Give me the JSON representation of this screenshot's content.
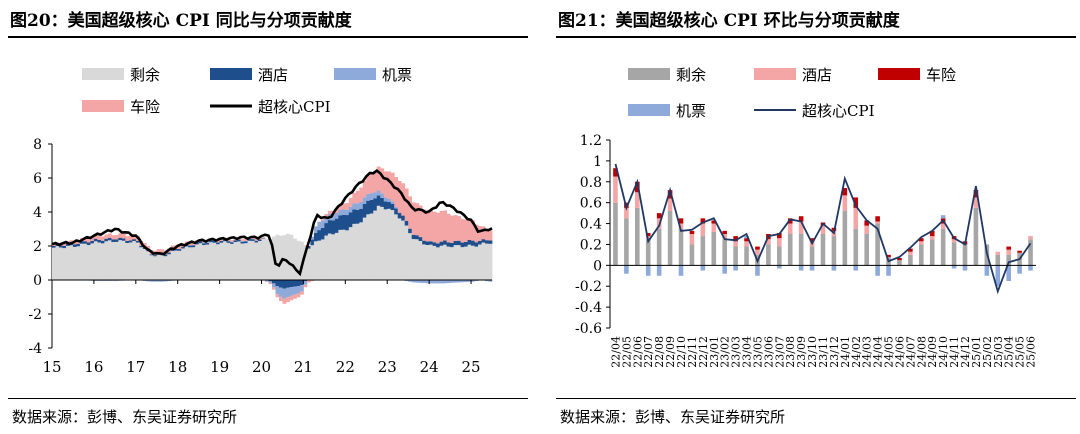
{
  "charts": [
    {
      "title": "图20：美国超级核心 CPI 同比与分项贡献度",
      "source": "数据来源：彭博、东吴证券研究所",
      "legend": [
        "剩余",
        "酒店",
        "机票",
        "车险",
        "超核心CPI"
      ],
      "colors": {
        "rest": "#d9d9d9",
        "hotel": "#1f4e8c",
        "airfare": "#8eaadb",
        "carins": "#f4a6a6",
        "line": "#000000"
      }
    },
    {
      "title": "图21：美国超级核心 CPI 环比与分项贡献度",
      "source": "数据来源：彭博、东吴证券研究所",
      "legend": [
        "剩余",
        "酒店",
        "车险",
        "机票",
        "超核心CPI"
      ],
      "colors": {
        "rest": "#a6a6a6",
        "hotel": "#f4a6a6",
        "carins": "#c00000",
        "airfare": "#8eaadb",
        "line": "#1f3864"
      }
    }
  ],
  "chart_data": [
    {
      "type": "area",
      "title": "图20：美国超级核心 CPI 同比与分项贡献度",
      "x_ticks": [
        "15",
        "16",
        "17",
        "18",
        "19",
        "20",
        "21",
        "22",
        "23",
        "24",
        "25"
      ],
      "y_ticks": [
        "8",
        "6",
        "4",
        "2",
        "0",
        "-2",
        "-4"
      ],
      "ylim": [
        -4,
        8
      ],
      "x_start_year": 2015,
      "x_end_year": 2025.5,
      "series_names": [
        "剩余",
        "酒店",
        "机票",
        "车险",
        "超核心CPI"
      ],
      "anchors": {
        "x": [
          2015.0,
          2015.5,
          2016.0,
          2016.5,
          2017.0,
          2017.3,
          2017.6,
          2018.0,
          2018.5,
          2019.0,
          2019.5,
          2019.9,
          2020.2,
          2020.35,
          2020.5,
          2020.7,
          2020.9,
          2021.1,
          2021.3,
          2021.6,
          2022.0,
          2022.3,
          2022.6,
          2022.75,
          2023.0,
          2023.3,
          2023.6,
          2024.0,
          2024.3,
          2024.6,
          2025.0,
          2025.2,
          2025.4
        ],
        "rest": [
          1.9,
          2.0,
          2.2,
          2.3,
          2.2,
          1.5,
          1.4,
          1.8,
          2.1,
          2.2,
          2.2,
          2.3,
          2.5,
          2.6,
          2.7,
          2.6,
          2.2,
          1.9,
          2.3,
          2.7,
          3.0,
          3.4,
          4.0,
          4.3,
          4.2,
          3.6,
          2.4,
          2.0,
          2.0,
          2.0,
          2.0,
          2.1,
          2.2
        ],
        "hotel": [
          0.1,
          0.15,
          0.15,
          0.15,
          0.1,
          0.05,
          0.1,
          0.1,
          0.1,
          0.1,
          0.1,
          0.1,
          -0.1,
          -0.4,
          -0.5,
          -0.4,
          -0.35,
          0.2,
          0.6,
          0.8,
          0.9,
          0.8,
          0.8,
          0.6,
          0.4,
          0.3,
          0.25,
          0.2,
          0.25,
          0.25,
          0.3,
          0.2,
          0.2
        ],
        "airfare": [
          0.0,
          0.0,
          -0.05,
          -0.05,
          0.0,
          -0.1,
          -0.1,
          0.0,
          0.05,
          0.0,
          0.05,
          0.0,
          -0.1,
          -0.5,
          -0.6,
          -0.5,
          -0.4,
          0.0,
          0.5,
          0.35,
          0.3,
          0.4,
          0.4,
          0.3,
          0.2,
          0.0,
          -0.15,
          -0.2,
          -0.2,
          -0.15,
          -0.1,
          0.0,
          -0.1
        ],
        "carins": [
          0.1,
          0.15,
          0.25,
          0.25,
          0.3,
          0.25,
          0.25,
          0.2,
          0.1,
          0.1,
          0.1,
          0.1,
          -0.1,
          -0.2,
          -0.3,
          -0.25,
          -0.2,
          -0.1,
          0.0,
          0.2,
          0.4,
          0.8,
          1.2,
          1.4,
          1.6,
          1.9,
          1.9,
          1.8,
          1.8,
          1.5,
          1.2,
          0.8,
          0.6
        ],
        "line": [
          2.1,
          2.2,
          2.6,
          3.0,
          2.6,
          1.7,
          1.5,
          2.0,
          2.3,
          2.4,
          2.5,
          2.5,
          2.7,
          0.7,
          1.2,
          1.0,
          0.3,
          2.0,
          3.8,
          3.6,
          4.8,
          5.6,
          6.3,
          6.4,
          5.9,
          5.2,
          4.2,
          4.0,
          4.6,
          4.2,
          3.5,
          2.8,
          3.0
        ]
      }
    },
    {
      "type": "bar",
      "title": "图21：美国超级核心 CPI 环比与分项贡献度",
      "y_ticks": [
        "1.2",
        "1",
        "0.8",
        "0.6",
        "0.4",
        "0.2",
        "0",
        "-0.2",
        "-0.4",
        "-0.6"
      ],
      "ylim": [
        -0.6,
        1.2
      ],
      "categories": [
        "22/04",
        "22/05",
        "22/06",
        "22/07",
        "22/08",
        "22/09",
        "22/10",
        "22/11",
        "22/12",
        "23/01",
        "23/02",
        "23/03",
        "23/04",
        "23/05",
        "23/06",
        "23/07",
        "23/08",
        "23/09",
        "23/10",
        "23/11",
        "23/12",
        "24/01",
        "24/02",
        "24/03",
        "24/04",
        "24/05",
        "24/06",
        "24/07",
        "24/08",
        "24/09",
        "24/10",
        "24/11",
        "24/12",
        "25/01",
        "25/02",
        "25/03",
        "25/04",
        "25/05",
        "25/06"
      ],
      "x_tick_labels": [
        "22/04",
        "22/05",
        "22/06",
        "22/07",
        "22/08",
        "22/09",
        "22/10",
        "22/11",
        "22/12",
        "23/01",
        "23/02",
        "23/03",
        "23/04",
        "23/05",
        "23/06",
        "23/07",
        "23/08",
        "23/09",
        "23/10",
        "23/11",
        "23/12",
        "24/01",
        "24/02",
        "24/03",
        "24/04",
        "24/05",
        "24/06",
        "24/07",
        "24/08",
        "24/09",
        "24/10",
        "24/11",
        "24/12",
        "25/01",
        "25/02",
        "25/03",
        "25/04",
        "25/05",
        "25/06"
      ],
      "series": [
        {
          "name": "剩余",
          "values": [
            0.6,
            0.45,
            0.55,
            0.25,
            0.35,
            0.52,
            0.35,
            0.2,
            0.28,
            0.32,
            0.25,
            0.18,
            0.18,
            0.1,
            0.2,
            0.18,
            0.3,
            0.3,
            0.18,
            0.3,
            0.28,
            0.52,
            0.35,
            0.3,
            0.4,
            0.08,
            0.05,
            0.1,
            0.2,
            0.25,
            0.35,
            0.22,
            0.2,
            0.55,
            0.2,
            0.1,
            0.1,
            0.12,
            0.25
          ]
        },
        {
          "name": "酒店",
          "values": [
            0.25,
            0.1,
            0.15,
            0.03,
            0.1,
            0.12,
            0.05,
            0.1,
            0.12,
            0.08,
            0.05,
            0.05,
            0.05,
            0.05,
            0.05,
            0.08,
            0.1,
            0.12,
            0.05,
            0.08,
            0.05,
            0.15,
            0.2,
            0.08,
            0.02,
            0.0,
            0.0,
            0.03,
            0.03,
            0.03,
            0.05,
            0.03,
            0.0,
            0.1,
            0.0,
            0.03,
            0.05,
            0.0,
            0.03
          ]
        },
        {
          "name": "车险",
          "values": [
            0.08,
            0.05,
            0.1,
            0.03,
            0.05,
            0.08,
            0.05,
            0.03,
            0.05,
            0.03,
            0.03,
            0.05,
            0.03,
            0.03,
            0.05,
            0.05,
            0.05,
            0.05,
            0.03,
            0.03,
            0.03,
            0.07,
            0.1,
            0.05,
            0.05,
            0.02,
            0.02,
            0.03,
            0.03,
            0.05,
            0.05,
            0.03,
            0.03,
            0.07,
            0.0,
            0.0,
            0.03,
            0.02,
            0.0
          ]
        },
        {
          "name": "机票",
          "values": [
            0.0,
            -0.08,
            0.0,
            -0.1,
            -0.1,
            0.0,
            -0.1,
            0.0,
            -0.05,
            0.0,
            -0.08,
            -0.05,
            0.02,
            -0.1,
            0.0,
            -0.03,
            0.0,
            -0.05,
            -0.05,
            0.0,
            -0.05,
            0.0,
            -0.05,
            0.0,
            -0.1,
            -0.1,
            0.0,
            0.0,
            0.0,
            0.0,
            0.03,
            -0.03,
            -0.05,
            0.0,
            -0.1,
            -0.2,
            -0.15,
            -0.08,
            -0.05
          ]
        },
        {
          "name": "超核心CPI",
          "values": [
            0.97,
            0.55,
            0.8,
            0.23,
            0.38,
            0.72,
            0.33,
            0.34,
            0.41,
            0.45,
            0.25,
            0.24,
            0.3,
            0.04,
            0.28,
            0.3,
            0.44,
            0.42,
            0.21,
            0.4,
            0.31,
            0.83,
            0.57,
            0.43,
            0.35,
            0.04,
            0.08,
            0.17,
            0.27,
            0.33,
            0.43,
            0.26,
            0.2,
            0.76,
            0.12,
            -0.25,
            0.03,
            0.06,
            0.21
          ]
        }
      ]
    }
  ]
}
